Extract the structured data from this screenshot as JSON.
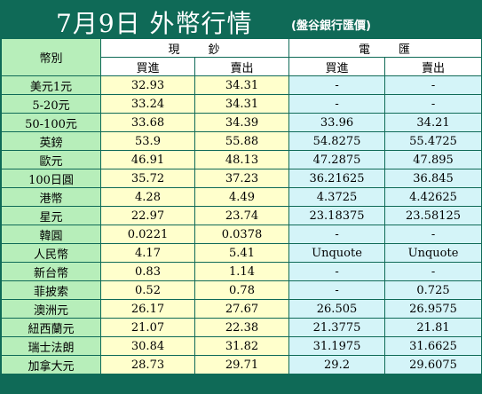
{
  "title": "7月9日 外幣行情",
  "subtitle": "(盤谷銀行匯價)",
  "table": {
    "corner": "幣別",
    "groups": {
      "cash": "現　　鈔",
      "spot": "電　　匯"
    },
    "subheaders": {
      "cash_buy": "買進",
      "cash_sell": "賣出",
      "spot_buy": "買進",
      "spot_sell": "賣出"
    },
    "rows": [
      {
        "currency": "美元1元",
        "cash_buy": "32.93",
        "cash_sell": "34.31",
        "spot_buy": "-",
        "spot_sell": "-"
      },
      {
        "currency": "5-20元",
        "cash_buy": "33.24",
        "cash_sell": "34.31",
        "spot_buy": "-",
        "spot_sell": "-"
      },
      {
        "currency": "50-100元",
        "cash_buy": "33.68",
        "cash_sell": "34.39",
        "spot_buy": "33.96",
        "spot_sell": "34.21"
      },
      {
        "currency": "英鎊",
        "cash_buy": "53.9",
        "cash_sell": "55.88",
        "spot_buy": "54.8275",
        "spot_sell": "55.4725"
      },
      {
        "currency": "歐元",
        "cash_buy": "46.91",
        "cash_sell": "48.13",
        "spot_buy": "47.2875",
        "spot_sell": "47.895"
      },
      {
        "currency": "100日圓",
        "cash_buy": "35.72",
        "cash_sell": "37.23",
        "spot_buy": "36.21625",
        "spot_sell": "36.845"
      },
      {
        "currency": "港幣",
        "cash_buy": "4.28",
        "cash_sell": "4.49",
        "spot_buy": "4.3725",
        "spot_sell": "4.42625"
      },
      {
        "currency": "星元",
        "cash_buy": "22.97",
        "cash_sell": "23.74",
        "spot_buy": "23.18375",
        "spot_sell": "23.58125"
      },
      {
        "currency": "韓圓",
        "cash_buy": "0.0221",
        "cash_sell": "0.0378",
        "spot_buy": "-",
        "spot_sell": "-"
      },
      {
        "currency": "人民幣",
        "cash_buy": "4.17",
        "cash_sell": "5.41",
        "spot_buy": "Unquote",
        "spot_sell": "Unquote"
      },
      {
        "currency": "新台幣",
        "cash_buy": "0.83",
        "cash_sell": "1.14",
        "spot_buy": "-",
        "spot_sell": "-"
      },
      {
        "currency": "菲披索",
        "cash_buy": "0.52",
        "cash_sell": "0.78",
        "spot_buy": "-",
        "spot_sell": "0.725"
      },
      {
        "currency": "澳洲元",
        "cash_buy": "26.17",
        "cash_sell": "27.67",
        "spot_buy": "26.505",
        "spot_sell": "26.9575"
      },
      {
        "currency": "紐西蘭元",
        "cash_buy": "21.07",
        "cash_sell": "22.38",
        "spot_buy": "21.3775",
        "spot_sell": "21.81"
      },
      {
        "currency": "瑞士法朗",
        "cash_buy": "30.84",
        "cash_sell": "31.82",
        "spot_buy": "31.1975",
        "spot_sell": "31.6625"
      },
      {
        "currency": "加拿大元",
        "cash_buy": "28.73",
        "cash_sell": "29.71",
        "spot_buy": "29.2",
        "spot_sell": "29.6075"
      }
    ]
  },
  "colors": {
    "header_background": "#0f6a57",
    "currency_cell": "#b7eeba",
    "cash_cell": "#ffffcc",
    "spot_cell": "#d4f4f8",
    "grid_line": "#0f6a57"
  }
}
